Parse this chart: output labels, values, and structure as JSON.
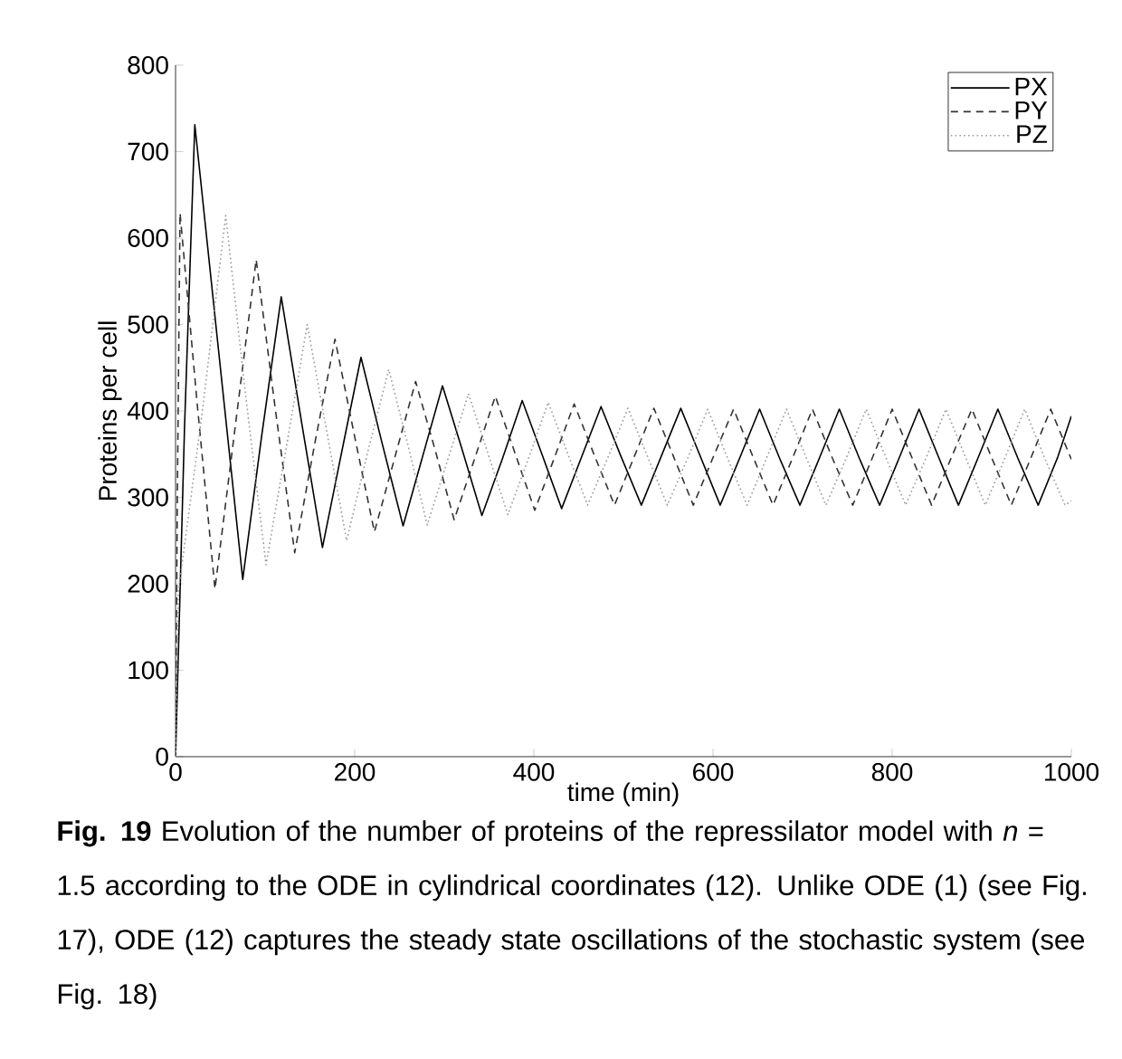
{
  "chart_data": {
    "type": "line",
    "xlabel": "time (min)",
    "ylabel": "Proteins per cell",
    "xlim": [
      0,
      1000
    ],
    "ylim": [
      0,
      800
    ],
    "xticks": [
      0,
      200,
      400,
      600,
      800,
      1000
    ],
    "yticks": [
      0,
      100,
      200,
      300,
      400,
      500,
      600,
      700,
      800
    ],
    "grid": false,
    "legend": "top right",
    "marker": "none",
    "annotations": [
      "**Fig. 19** Evolution of the number of proteins of the repressilator model with *n* = 1.5 according to the ODE in cylindrical coordinates (12). Unlike ODE (1) (see Fig. 17), ODE (12) captures the steady state oscillations of the stochastic system (see Fig. 18)"
    ],
    "series": [
      {
        "name": "PX",
        "color": "#000000",
        "line_style": "solid",
        "x": [
          0,
          10,
          21.5,
          48,
          75,
          96,
          118,
          141,
          164,
          185,
          207,
          230,
          254,
          276,
          298,
          320,
          342,
          365,
          387,
          409,
          431,
          453,
          475,
          497,
          520,
          542,
          564,
          586,
          608,
          630,
          652,
          674,
          697,
          719,
          741,
          763,
          786,
          808,
          830,
          852,
          874,
          896,
          918,
          940,
          963,
          985,
          1000
        ],
        "values": [
          0,
          380,
          731,
          470,
          205,
          370,
          532,
          385,
          242,
          350,
          462,
          365,
          267,
          348,
          429,
          355,
          279,
          345,
          412,
          350,
          287,
          346,
          405,
          348,
          291,
          347,
          403,
          347,
          291,
          346,
          402,
          346,
          291,
          346,
          402,
          346,
          291,
          346,
          402,
          346,
          291,
          346,
          402,
          346,
          291,
          347,
          394
        ]
      },
      {
        "name": "PY",
        "color": "#333333",
        "line_style": "dashed",
        "x": [
          0,
          2,
          5,
          24,
          44,
          67,
          90,
          111,
          133,
          155,
          178,
          200,
          222,
          245,
          268,
          290,
          311,
          334,
          357,
          379,
          401,
          423,
          445,
          467,
          490,
          512,
          534,
          556,
          578,
          600,
          623,
          645,
          667,
          689,
          711,
          733,
          756,
          778,
          800,
          822,
          844,
          866,
          889,
          911,
          933,
          955,
          977,
          1000
        ],
        "values": [
          0,
          300,
          629,
          410,
          194,
          385,
          575,
          405,
          236,
          360,
          483,
          370,
          260,
          347,
          434,
          354,
          274,
          345,
          417,
          351,
          285,
          346,
          408,
          350,
          291,
          347,
          403,
          347,
          291,
          346,
          402,
          346,
          291,
          346,
          402,
          346,
          291,
          346,
          402,
          346,
          291,
          346,
          402,
          346,
          291,
          346,
          402,
          344
        ]
      },
      {
        "name": "PZ",
        "color": "#999999",
        "line_style": "dotted",
        "x": [
          0,
          3,
          30,
          56,
          78,
          101,
          124,
          147,
          169,
          191,
          214,
          238,
          260,
          281,
          304,
          327,
          349,
          371,
          394,
          416,
          438,
          460,
          483,
          505,
          527,
          549,
          572,
          594,
          616,
          638,
          660,
          682,
          704,
          726,
          749,
          771,
          793,
          815,
          838,
          860,
          882,
          904,
          926,
          948,
          970,
          993,
          1000
        ],
        "values": [
          0,
          190,
          400,
          626,
          420,
          222,
          360,
          500,
          375,
          250,
          350,
          448,
          358,
          268,
          344,
          420,
          350,
          280,
          345,
          410,
          350,
          291,
          347,
          403,
          347,
          291,
          346,
          402,
          346,
          291,
          346,
          402,
          346,
          291,
          346,
          402,
          346,
          291,
          346,
          402,
          346,
          291,
          346,
          402,
          346,
          291,
          296
        ]
      }
    ]
  }
}
